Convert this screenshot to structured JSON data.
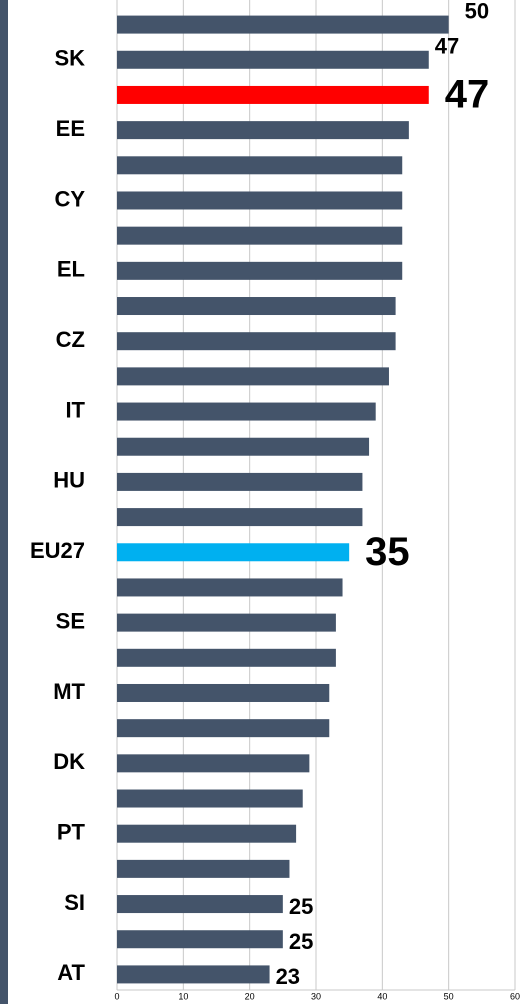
{
  "chart_data": {
    "type": "barh",
    "categories": [
      null,
      "SK",
      null,
      "EE",
      null,
      "CY",
      null,
      "EL",
      null,
      "CZ",
      null,
      "IT",
      null,
      "HU",
      null,
      "EU27",
      null,
      "SE",
      null,
      "MT",
      null,
      "DK",
      null,
      "PT",
      null,
      "SI",
      null,
      "AT"
    ],
    "values": [
      50,
      47,
      47,
      44,
      43,
      43,
      43,
      43,
      42,
      42,
      41,
      39,
      38,
      37,
      37,
      35,
      34,
      33,
      33,
      32,
      32,
      29,
      28,
      27,
      26,
      25,
      25,
      23
    ],
    "value_labels": [
      "50",
      "47",
      "47",
      null,
      null,
      null,
      null,
      null,
      null,
      null,
      null,
      null,
      null,
      null,
      null,
      "35",
      null,
      null,
      null,
      null,
      null,
      null,
      null,
      null,
      null,
      "25",
      "25",
      "23"
    ],
    "color": "#44546a",
    "colors": [
      "#44546a",
      "#44546a",
      "#ff0000",
      "#44546a",
      "#44546a",
      "#44546a",
      "#44546a",
      "#44546a",
      "#44546a",
      "#44546a",
      "#44546a",
      "#44546a",
      "#44546a",
      "#44546a",
      "#44546a",
      "#00b0f0",
      "#44546a",
      "#44546a",
      "#44546a",
      "#44546a",
      "#44546a",
      "#44546a",
      "#44546a",
      "#44546a",
      "#44546a",
      "#44546a",
      "#44546a",
      "#44546a"
    ],
    "xlim": [
      0,
      60
    ],
    "xticks": [
      0,
      10,
      20,
      30,
      40,
      50,
      60
    ],
    "grid": true
  }
}
